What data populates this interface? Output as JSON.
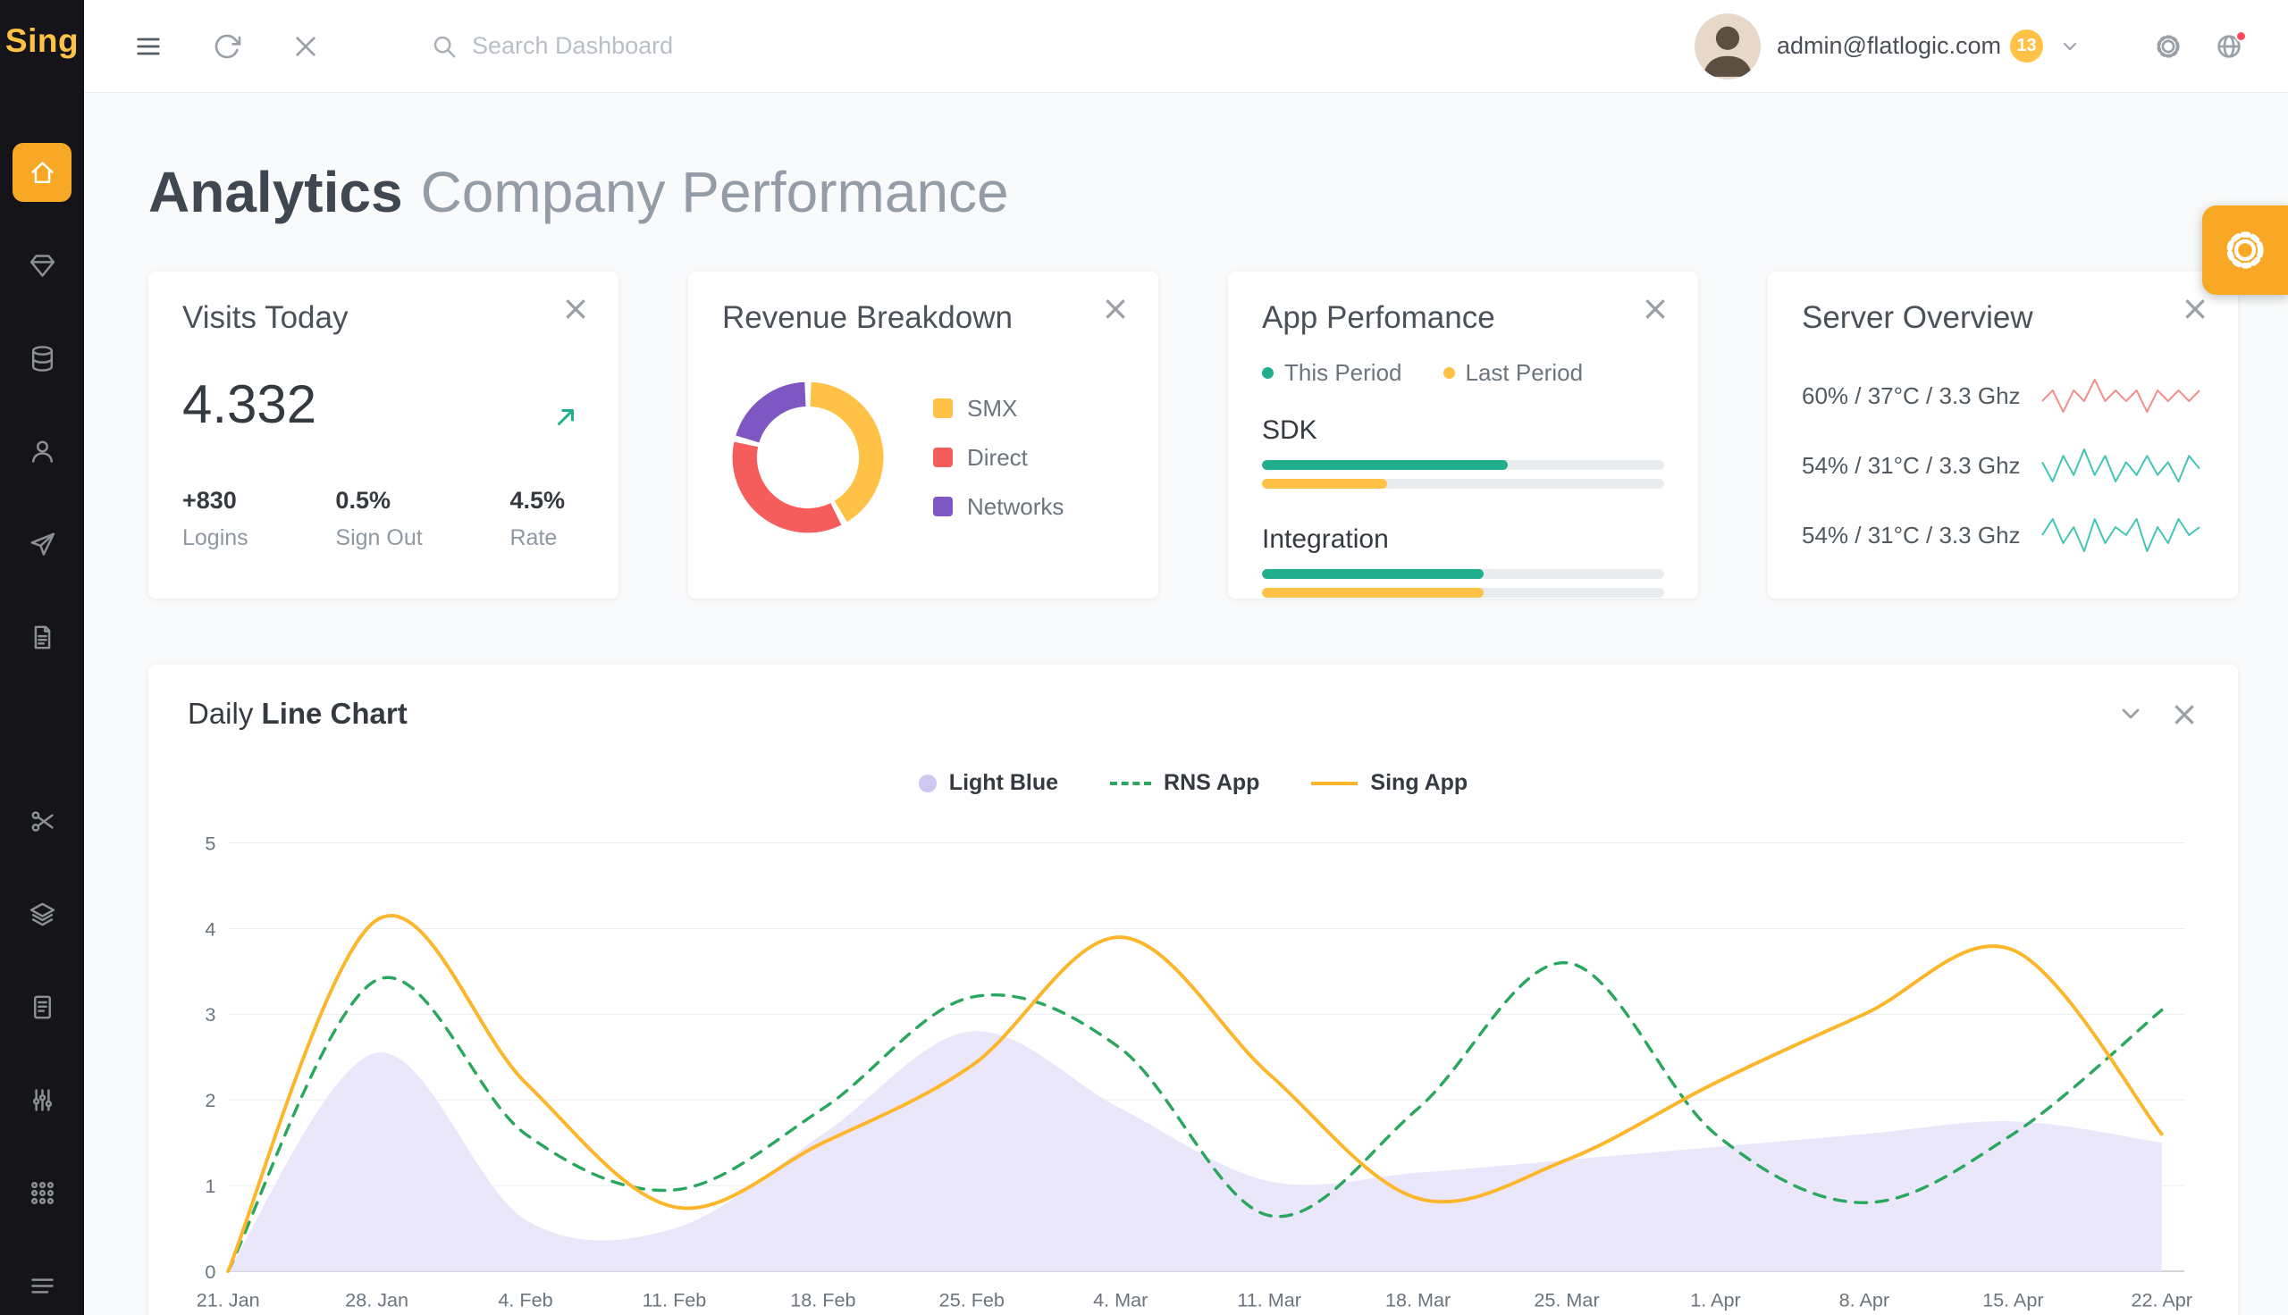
{
  "app": {
    "logo": "Sing"
  },
  "colors": {
    "accent_orange": "#f9a825",
    "yellow": "#ffc247",
    "red": "#f55d5d",
    "purple": "#7e57c2",
    "green": "#21ae8c",
    "lavender": "#cdc8f0"
  },
  "header": {
    "search_placeholder": "Search Dashboard",
    "user_email": "admin@flatlogic.com",
    "notifications_count": "13",
    "left_icons": [
      "menu",
      "refresh",
      "close"
    ],
    "right_icons": [
      "gear",
      "globe"
    ]
  },
  "sidebar": {
    "icons": [
      "home",
      "gift",
      "database",
      "user",
      "paper-plane",
      "document",
      "scissors",
      "layers",
      "file",
      "sliders",
      "grid",
      "menu"
    ],
    "active_index": 0
  },
  "page": {
    "title": "Analytics",
    "subtitle": "Company Performance"
  },
  "cards": {
    "visits": {
      "title": "Visits Today",
      "value": "4.332",
      "trend_icon": "arrow-up-right",
      "stats": [
        {
          "value": "+830",
          "label": "Logins"
        },
        {
          "value": "0.5%",
          "label": "Sign Out"
        },
        {
          "value": "4.5%",
          "label": "Rate"
        }
      ]
    },
    "revenue": {
      "title": "Revenue Breakdown",
      "donut": {
        "segments": [
          {
            "label": "SMX",
            "value": 42,
            "color": "#ffc247"
          },
          {
            "label": "Direct",
            "value": 37,
            "color": "#f55d5d"
          },
          {
            "label": "Networks",
            "value": 21,
            "color": "#7e57c2"
          }
        ]
      }
    },
    "performance": {
      "title": "App Perfomance",
      "legend": [
        {
          "label": "This Period",
          "color": "#21ae8c"
        },
        {
          "label": "Last Period",
          "color": "#ffc247"
        }
      ],
      "groups": [
        {
          "label": "SDK",
          "bars": [
            {
              "value": 61,
              "color": "#21ae8c"
            },
            {
              "value": 31,
              "color": "#ffc247"
            }
          ]
        },
        {
          "label": "Integration",
          "bars": [
            {
              "value": 55,
              "color": "#21ae8c"
            },
            {
              "value": 55,
              "color": "#ffc247"
            }
          ]
        }
      ]
    },
    "server": {
      "title": "Server Overview",
      "rows": [
        {
          "label": "60% / 37°C / 3.3 Ghz",
          "spark_color": "#f0908d",
          "spark": [
            5,
            6,
            4,
            6,
            5,
            7,
            5,
            6,
            5,
            6,
            4,
            6,
            5,
            6,
            5,
            6
          ]
        },
        {
          "label": "54% / 31°C / 3.3 Ghz",
          "spark_color": "#41c5b5",
          "spark": [
            6,
            3,
            7,
            4,
            8,
            4,
            7,
            3,
            6,
            4,
            7,
            4,
            6,
            3,
            7,
            5
          ]
        },
        {
          "label": "54% / 31°C / 3.3 Ghz",
          "spark_color": "#41c5b5",
          "spark": [
            5,
            7,
            4,
            6,
            3,
            7,
            4,
            6,
            5,
            7,
            3,
            6,
            4,
            7,
            5,
            6
          ]
        }
      ]
    }
  },
  "chart_card": {
    "title_regular": "Daily",
    "title_bold": "Line Chart"
  },
  "chart_data": {
    "type": "line",
    "title": "Daily Line Chart",
    "x": [
      "21. Jan",
      "28. Jan",
      "4. Feb",
      "11. Feb",
      "18. Feb",
      "25. Feb",
      "4. Mar",
      "11. Mar",
      "18. Mar",
      "25. Mar",
      "1. Apr",
      "8. Apr",
      "15. Apr",
      "22. Apr"
    ],
    "ylim": [
      0,
      5
    ],
    "yticks": [
      0,
      1,
      2,
      3,
      4,
      5
    ],
    "grid": true,
    "legend_position": "top",
    "series": [
      {
        "name": "Light Blue",
        "type": "area",
        "color": "#cdc8f0",
        "fill": "#eae7fa",
        "values": [
          0,
          2.55,
          0.6,
          0.5,
          1.6,
          2.8,
          1.9,
          1.05,
          1.15,
          1.3,
          1.45,
          1.6,
          1.75,
          1.5
        ]
      },
      {
        "name": "RNS App",
        "type": "line",
        "style": "dashed",
        "color": "#2aa75f",
        "values": [
          0,
          3.4,
          1.6,
          0.95,
          1.9,
          3.2,
          2.6,
          0.65,
          1.9,
          3.6,
          1.6,
          0.8,
          1.6,
          3.05
        ]
      },
      {
        "name": "Sing App",
        "type": "line",
        "style": "solid",
        "color": "#fdb52a",
        "values": [
          0,
          4.1,
          2.2,
          0.75,
          1.5,
          2.4,
          3.9,
          2.3,
          0.85,
          1.3,
          2.2,
          3.0,
          3.75,
          1.6
        ]
      }
    ]
  }
}
